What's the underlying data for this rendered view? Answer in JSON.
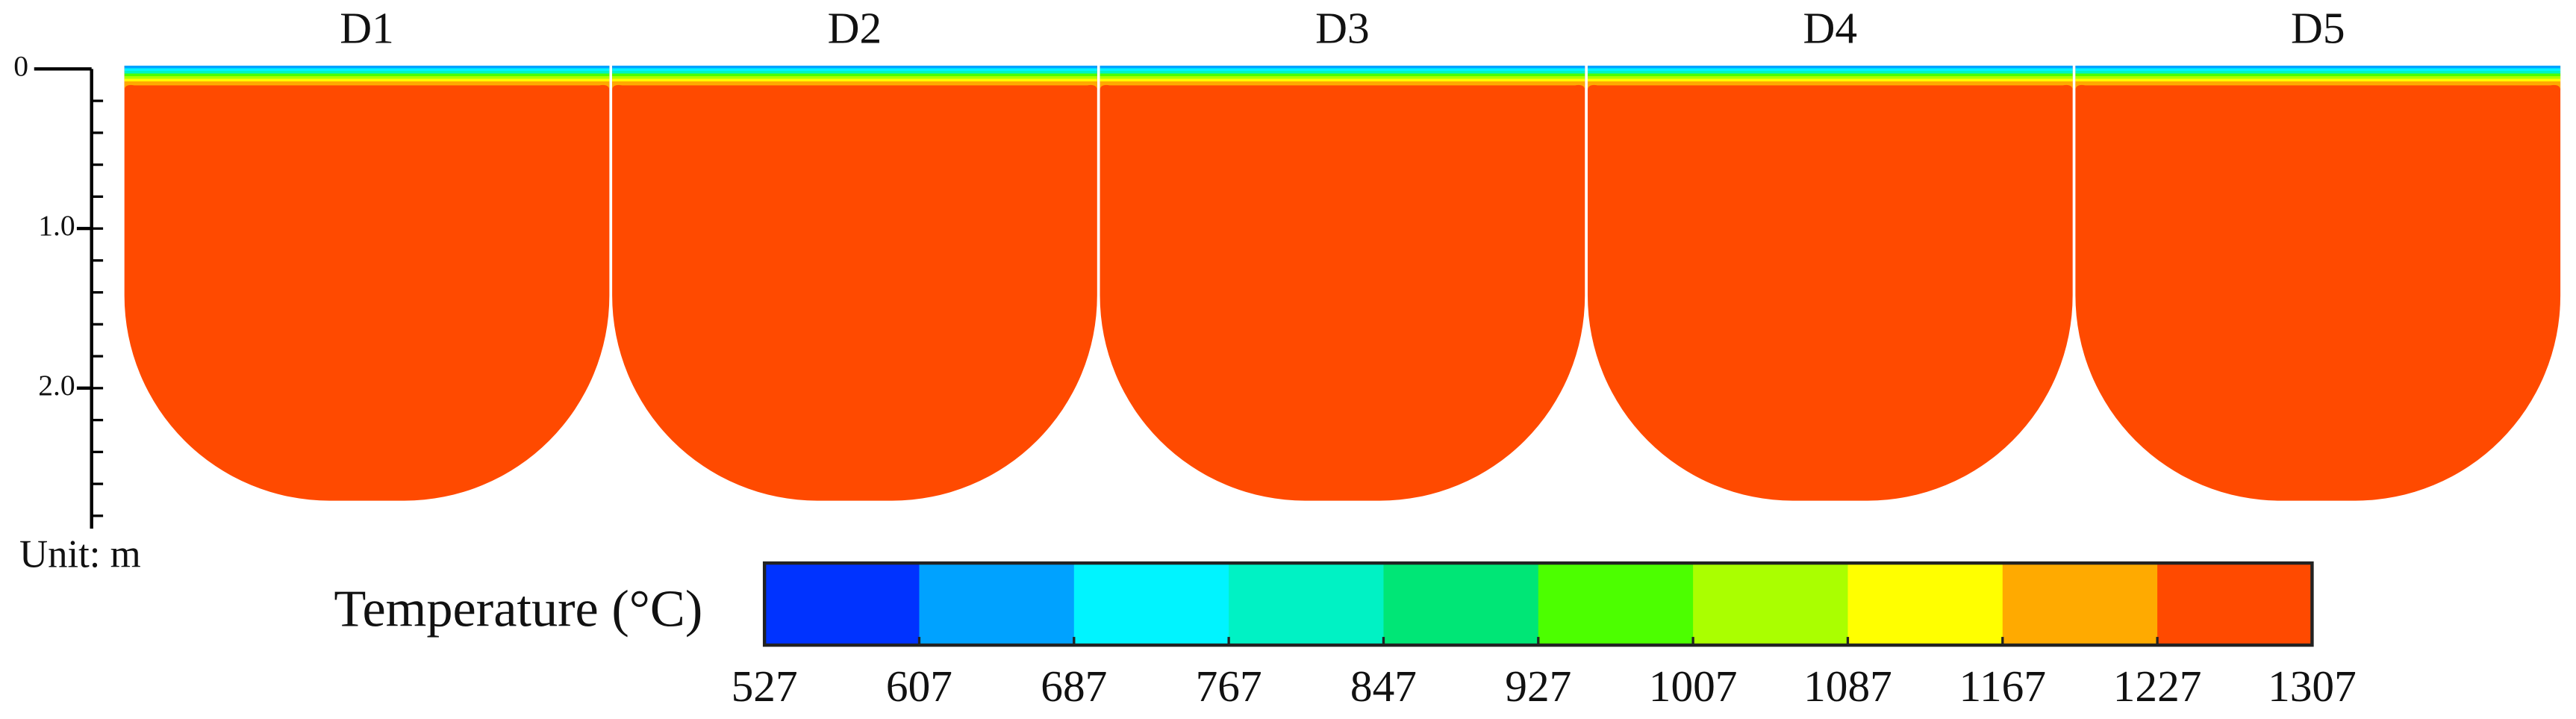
{
  "depth_axis": {
    "lim": [
      0,
      2.88
    ],
    "ticks": [
      {
        "value": 0,
        "label": "0"
      },
      {
        "value": 1,
        "label": "1.0"
      },
      {
        "value": 2,
        "label": "2.0"
      }
    ],
    "unit_label": "Unit: m"
  },
  "panels": [
    {
      "label": "D1"
    },
    {
      "label": "D2"
    },
    {
      "label": "D3"
    },
    {
      "label": "D4"
    },
    {
      "label": "D5"
    }
  ],
  "colorbar": {
    "title": "Temperature (°C)",
    "ticks": [
      527,
      607,
      687,
      767,
      847,
      927,
      1007,
      1087,
      1167,
      1227,
      1307
    ],
    "colors": [
      "#0033ff",
      "#00a2ff",
      "#00f4ff",
      "#00f2c4",
      "#00e676",
      "#4cff00",
      "#aaff00",
      "#ffff00",
      "#ffaa00",
      "#ff4a00"
    ]
  }
}
